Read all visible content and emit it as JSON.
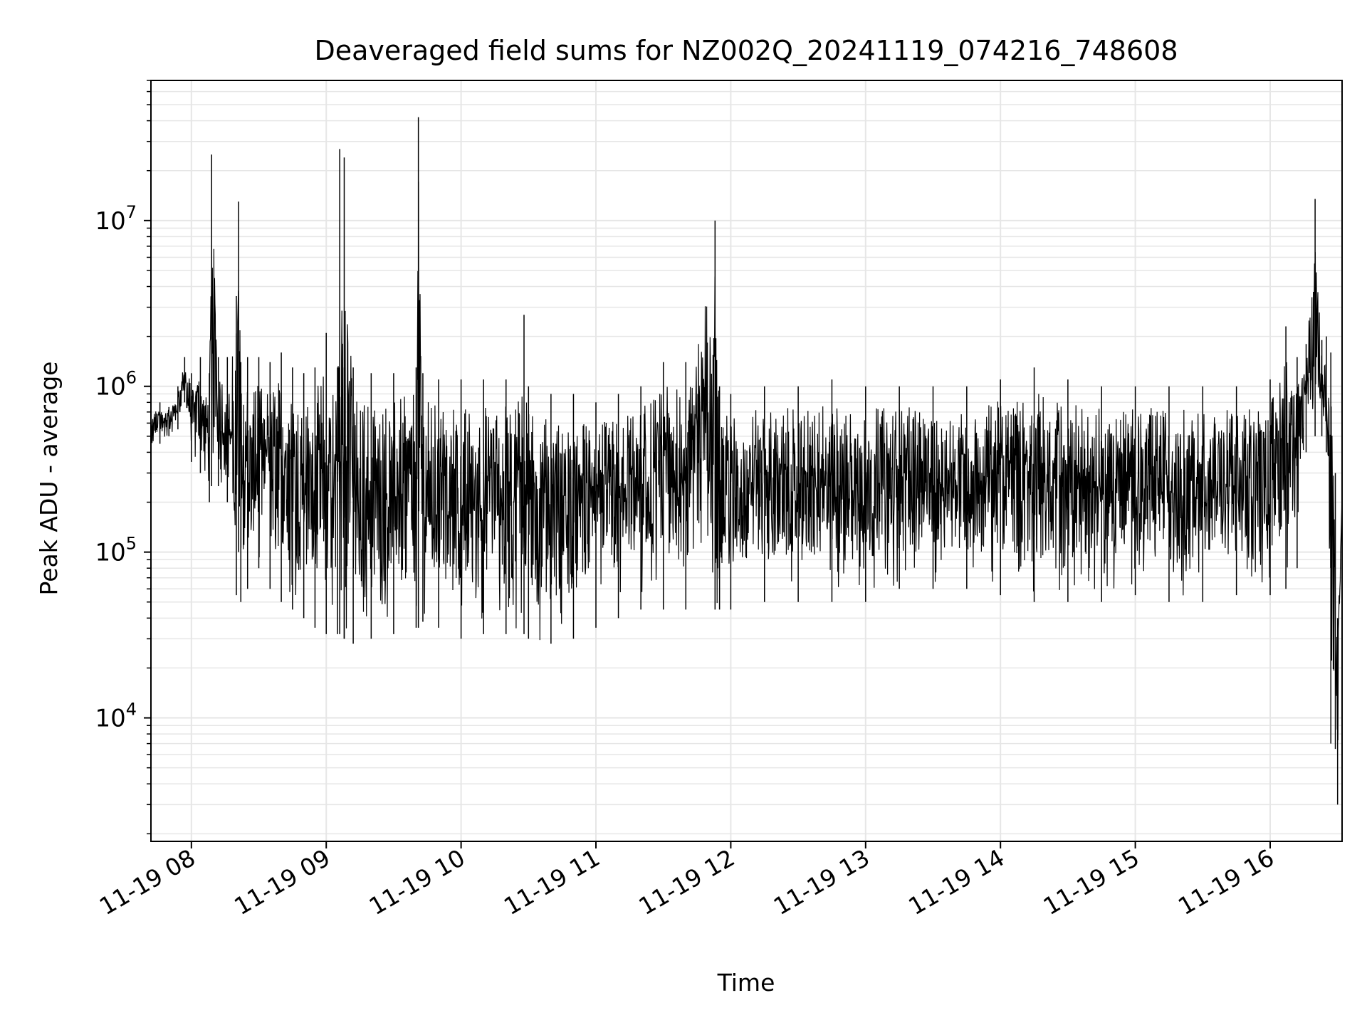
{
  "chart_data": {
    "type": "line",
    "title": "Deaveraged field sums for NZ002Q_20241119_074216_748608",
    "xlabel": "Time",
    "ylabel": "Peak ADU - average",
    "yscale": "log",
    "ylim": [
      1800,
      70000000
    ],
    "xlim": [
      "2024-11-19 07:42",
      "2024-11-19 16:32"
    ],
    "grid": true,
    "line_color": "#000000",
    "grid_color": "#e6e6e6",
    "x_ticks": [
      "11-19 08",
      "11-19 09",
      "11-19 10",
      "11-19 11",
      "11-19 12",
      "11-19 13",
      "11-19 14",
      "11-19 15",
      "11-19 16"
    ],
    "x_tick_times": [
      "2024-11-19 08:00",
      "2024-11-19 09:00",
      "2024-11-19 10:00",
      "2024-11-19 11:00",
      "2024-11-19 12:00",
      "2024-11-19 13:00",
      "2024-11-19 14:00",
      "2024-11-19 15:00",
      "2024-11-19 16:00"
    ],
    "y_ticks": [
      {
        "value": 10000,
        "base": "10",
        "exp": "4"
      },
      {
        "value": 100000,
        "base": "10",
        "exp": "5"
      },
      {
        "value": 1000000,
        "base": "10",
        "exp": "6"
      },
      {
        "value": 10000000,
        "base": "10",
        "exp": "7"
      }
    ],
    "series": [
      {
        "x": [
          "2024-11-19 07:42",
          "2024-11-19 07:46",
          "2024-11-19 07:50",
          "2024-11-19 07:54",
          "2024-11-19 07:57",
          "2024-11-19 08:00",
          "2024-11-19 08:04",
          "2024-11-19 08:08",
          "2024-11-19 08:09",
          "2024-11-19 08:12",
          "2024-11-19 08:16",
          "2024-11-19 08:20",
          "2024-11-19 08:21",
          "2024-11-19 08:22",
          "2024-11-19 08:25",
          "2024-11-19 08:30",
          "2024-11-19 08:35",
          "2024-11-19 08:40",
          "2024-11-19 08:45",
          "2024-11-19 08:50",
          "2024-11-19 08:55",
          "2024-11-19 09:00",
          "2024-11-19 09:05",
          "2024-11-19 09:06",
          "2024-11-19 09:08",
          "2024-11-19 09:08",
          "2024-11-19 09:12",
          "2024-11-19 09:20",
          "2024-11-19 09:30",
          "2024-11-19 09:40",
          "2024-11-19 09:41",
          "2024-11-19 09:43",
          "2024-11-19 09:50",
          "2024-11-19 10:00",
          "2024-11-19 10:10",
          "2024-11-19 10:20",
          "2024-11-19 10:28",
          "2024-11-19 10:30",
          "2024-11-19 10:40",
          "2024-11-19 10:50",
          "2024-11-19 11:00",
          "2024-11-19 11:10",
          "2024-11-19 11:20",
          "2024-11-19 11:30",
          "2024-11-19 11:40",
          "2024-11-19 11:53",
          "2024-11-19 11:55",
          "2024-11-19 12:00",
          "2024-11-19 12:15",
          "2024-11-19 12:30",
          "2024-11-19 12:45",
          "2024-11-19 13:00",
          "2024-11-19 13:15",
          "2024-11-19 13:30",
          "2024-11-19 13:45",
          "2024-11-19 14:00",
          "2024-11-19 14:15",
          "2024-11-19 14:30",
          "2024-11-19 14:45",
          "2024-11-19 15:00",
          "2024-11-19 15:15",
          "2024-11-19 15:30",
          "2024-11-19 15:45",
          "2024-11-19 16:00",
          "2024-11-19 16:07",
          "2024-11-19 16:12",
          "2024-11-19 16:16",
          "2024-11-19 16:20",
          "2024-11-19 16:23",
          "2024-11-19 16:25",
          "2024-11-19 16:27",
          "2024-11-19 16:29",
          "2024-11-19 16:30",
          "2024-11-19 16:32"
        ],
        "upper": [
          750000,
          800000,
          750000,
          1000000,
          1500000,
          1200000,
          1500000,
          1200000,
          25000000,
          1500000,
          1500000,
          3500000,
          13000000,
          1400000,
          1500000,
          1500000,
          1400000,
          1600000,
          1300000,
          1200000,
          1300000,
          2100000,
          1300000,
          27000000,
          1300000,
          24000000,
          1300000,
          1200000,
          1200000,
          1300000,
          42000000,
          1200000,
          1100000,
          1100000,
          1100000,
          1100000,
          2700000,
          1000000,
          900000,
          900000,
          800000,
          900000,
          1000000,
          1400000,
          1400000,
          10000000,
          1000000,
          900000,
          1000000,
          1000000,
          1100000,
          1000000,
          1000000,
          1000000,
          1000000,
          1100000,
          1300000,
          1100000,
          1000000,
          1000000,
          1000000,
          1000000,
          1000000,
          1100000,
          2300000,
          1500000,
          1800000,
          13500000,
          1900000,
          2000000,
          1600000,
          300000,
          40000,
          380000
        ],
        "lower": [
          350000,
          450000,
          500000,
          550000,
          800000,
          350000,
          300000,
          200000,
          250000,
          250000,
          200000,
          55000,
          100000,
          50000,
          60000,
          80000,
          60000,
          50000,
          45000,
          40000,
          35000,
          32000,
          32000,
          32000,
          30000,
          30000,
          28000,
          30000,
          32000,
          35000,
          35000,
          38000,
          35000,
          30000,
          32000,
          32000,
          32000,
          30000,
          28000,
          30000,
          35000,
          40000,
          45000,
          45000,
          45000,
          45000,
          45000,
          45000,
          50000,
          50000,
          50000,
          50000,
          60000,
          60000,
          60000,
          55000,
          50000,
          50000,
          50000,
          55000,
          50000,
          50000,
          55000,
          55000,
          60000,
          80000,
          400000,
          500000,
          500000,
          400000,
          7000,
          6500,
          3000,
          150000
        ]
      }
    ]
  }
}
